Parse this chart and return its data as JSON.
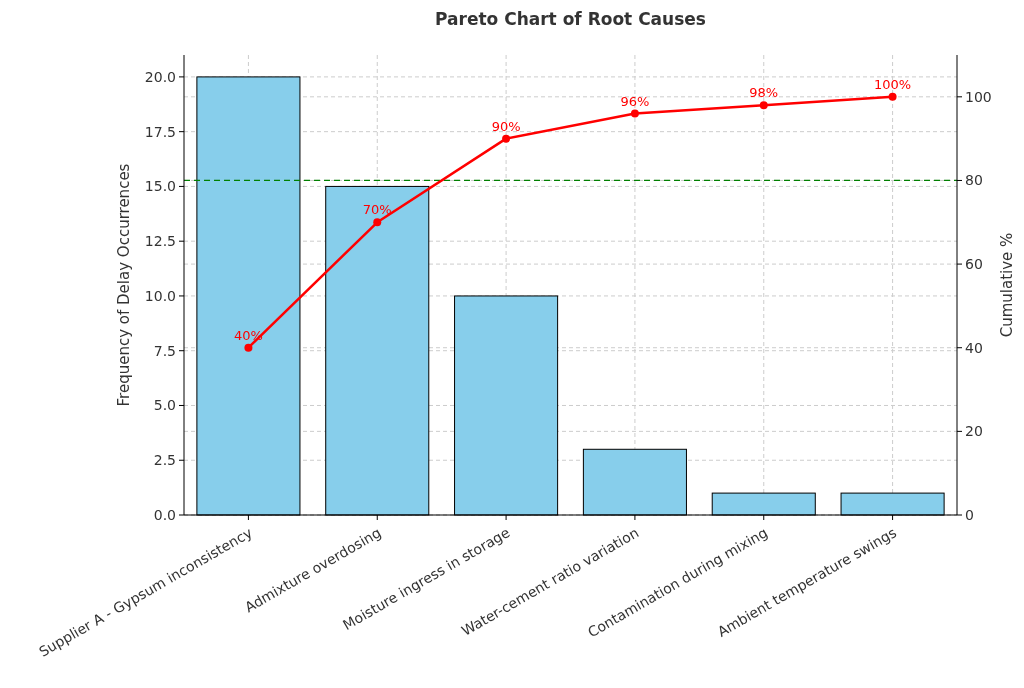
{
  "chart_data": {
    "type": "bar",
    "title": "Pareto Chart of Root Causes",
    "ylabel": "Frequency of Delay Occurrences",
    "y2label": "Cumulative %",
    "categories": [
      "Supplier A - Gypsum inconsistency",
      "Admixture overdosing",
      "Moisture ingress in storage",
      "Water-cement ratio variation",
      "Contamination during mixing",
      "Ambient temperature swings"
    ],
    "series": [
      {
        "color": "#87ceeb",
        "values": [
          20,
          15,
          10,
          3,
          1,
          1
        ]
      },
      {
        "type": "line",
        "axis": "y2",
        "color": "#ff0000",
        "values": [
          40,
          70,
          90,
          96,
          98,
          100
        ],
        "value_labels": [
          "40%",
          "70%",
          "90%",
          "96%",
          "98%",
          "100%"
        ]
      }
    ],
    "ylim": [
      0,
      21
    ],
    "yticks": [
      {
        "value": 0,
        "label": "0.0"
      },
      {
        "value": 2.5,
        "label": "2.5"
      },
      {
        "value": 5,
        "label": "5.0"
      },
      {
        "value": 7.5,
        "label": "7.5"
      },
      {
        "value": 10,
        "label": "10.0"
      },
      {
        "value": 12.5,
        "label": "12.5"
      },
      {
        "value": 15,
        "label": "15.0"
      },
      {
        "value": 17.5,
        "label": "17.5"
      },
      {
        "value": 20,
        "label": "20.0"
      }
    ],
    "y2lim": [
      0,
      110
    ],
    "y2ticks": [
      0,
      20,
      40,
      60,
      80,
      100
    ],
    "ref_lines": [
      {
        "axis": "y2",
        "value": 80,
        "color": "#008000",
        "line_style": "dashed"
      }
    ],
    "grid": true,
    "marker": "circle",
    "line_style": "solid"
  }
}
